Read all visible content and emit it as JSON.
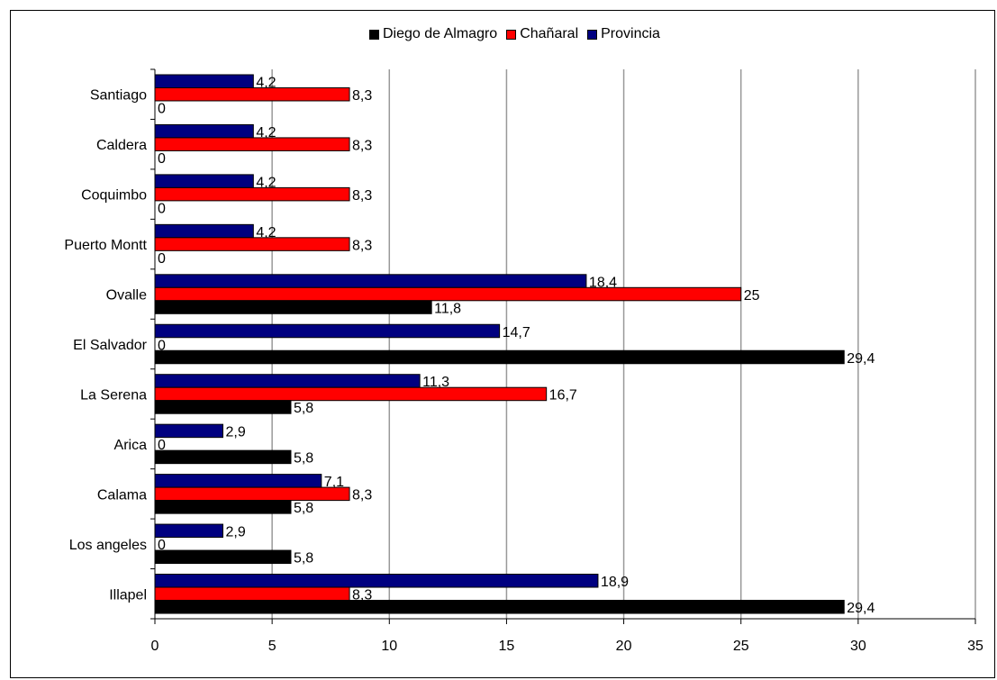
{
  "chart_data": {
    "type": "bar",
    "orientation": "horizontal",
    "categories": [
      "Santiago",
      "Caldera",
      "Coquimbo",
      "Puerto Montt",
      "Ovalle",
      "El Salvador",
      "La Serena",
      "Arica",
      "Calama",
      "Los angeles",
      "Illapel"
    ],
    "series": [
      {
        "name": "Diego de Almagro",
        "color": "#000000",
        "values": [
          0,
          0,
          0,
          0,
          11.8,
          29.4,
          5.8,
          5.8,
          5.8,
          5.8,
          29.4
        ],
        "labels": [
          "0",
          "0",
          "0",
          "0",
          "11,8",
          "29,4",
          "5,8",
          "5,8",
          "5,8",
          "5,8",
          "29,4"
        ]
      },
      {
        "name": "Chañaral",
        "color": "#ff0000",
        "values": [
          8.3,
          8.3,
          8.3,
          8.3,
          25,
          0,
          16.7,
          0,
          8.3,
          0,
          8.3
        ],
        "labels": [
          "8,3",
          "8,3",
          "8,3",
          "8,3",
          "25",
          "0",
          "16,7",
          "0",
          "8,3",
          "0",
          "8,3"
        ]
      },
      {
        "name": "Provincia",
        "color": "#000080",
        "values": [
          4.2,
          4.2,
          4.2,
          4.2,
          18.4,
          14.7,
          11.3,
          2.9,
          7.1,
          2.9,
          18.9
        ],
        "labels": [
          "4,2",
          "4,2",
          "4,2",
          "4,2",
          "18,4",
          "14,7",
          "11,3",
          "2,9",
          "7,1",
          "2,9",
          "18,9"
        ]
      }
    ],
    "xlim": [
      0,
      35
    ],
    "xticks": [
      "0",
      "5",
      "10",
      "15",
      "20",
      "25",
      "30",
      "35"
    ],
    "grid": true,
    "legend_position": "top"
  }
}
